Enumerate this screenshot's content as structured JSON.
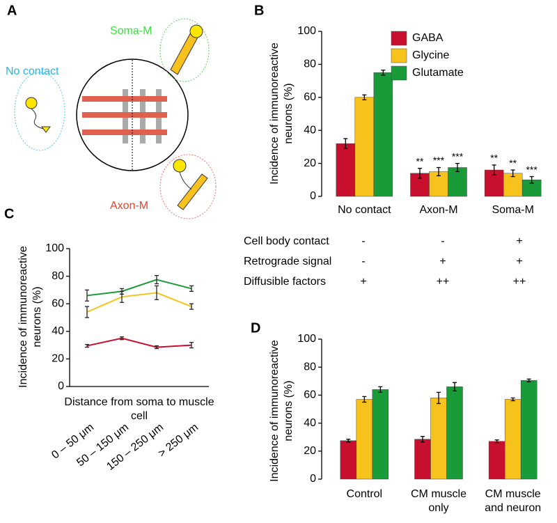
{
  "panel_labels": [
    "A",
    "B",
    "C",
    "D"
  ],
  "diagram": {
    "soma_m": "Soma-M",
    "no_contact": "No contact",
    "axon_m": "Axon-M"
  },
  "table": {
    "rows": [
      {
        "label": "Cell body contact",
        "cells": [
          "-",
          "-",
          "+"
        ]
      },
      {
        "label": "Retrograde signal",
        "cells": [
          "-",
          "+",
          "+"
        ]
      },
      {
        "label": "Diffusible factors",
        "cells": [
          "+",
          "++",
          "++"
        ]
      }
    ]
  },
  "chart_data": [
    {
      "type": "bar",
      "ylabel": "Incidence of immunoreactive neurons (%)",
      "categories": [
        "No contact",
        "Axon-M",
        "Soma-M"
      ],
      "series": [
        {
          "name": "GABA",
          "color": "#c8102e",
          "values": [
            32,
            14,
            16
          ],
          "errors": [
            3,
            3,
            3
          ],
          "significance": [
            null,
            "**",
            "**"
          ]
        },
        {
          "name": "Glycine",
          "color": "#f7c21b",
          "values": [
            60,
            15,
            14
          ],
          "errors": [
            1.5,
            2.5,
            2
          ],
          "significance": [
            null,
            "***",
            "**"
          ]
        },
        {
          "name": "Glutamate",
          "color": "#1a9b3a",
          "values": [
            75,
            17.5,
            10
          ],
          "errors": [
            1.5,
            2.5,
            2
          ],
          "significance": [
            null,
            "***",
            "***"
          ]
        }
      ],
      "ylim": [
        0,
        100
      ],
      "yticks": [
        0,
        20,
        40,
        60,
        80,
        100
      ],
      "legend": "top-right"
    },
    {
      "type": "line",
      "ylabel": "Incidence of immunoreactive neurons (%)",
      "xlabel": "Distance from soma to muscle cell",
      "categories": [
        "0 – 50 μm",
        "50 – 150 μm",
        "150 – 250 μm",
        "> 250 μm"
      ],
      "series": [
        {
          "color": "#1a9b3a",
          "values": [
            66,
            69,
            77.5,
            71
          ],
          "errors": [
            4,
            2,
            3,
            2
          ]
        },
        {
          "color": "#f7c21b",
          "values": [
            54,
            65,
            68,
            58
          ],
          "errors": [
            4,
            4,
            5,
            2
          ]
        },
        {
          "color": "#c8102e",
          "values": [
            29.5,
            35,
            28.5,
            30
          ],
          "errors": [
            1,
            1,
            1,
            2
          ]
        }
      ],
      "ylim": [
        0,
        100
      ],
      "yticks": [
        0,
        20,
        40,
        60,
        80,
        100
      ]
    },
    {
      "type": "bar",
      "ylabel": "Incidence of immunoreactive neurons (%)",
      "categories": [
        "Control",
        "CM muscle only",
        "CM muscle and neuron"
      ],
      "series": [
        {
          "color": "#c8102e",
          "values": [
            27.5,
            28.5,
            27
          ],
          "errors": [
            1,
            2,
            1
          ]
        },
        {
          "color": "#f7c21b",
          "values": [
            57,
            58,
            57
          ],
          "errors": [
            2,
            4,
            1
          ]
        },
        {
          "color": "#1a9b3a",
          "values": [
            64,
            66,
            70.5
          ],
          "errors": [
            2,
            3,
            1
          ]
        }
      ],
      "ylim": [
        0,
        100
      ],
      "yticks": [
        0,
        20,
        40,
        60,
        80,
        100
      ]
    }
  ]
}
